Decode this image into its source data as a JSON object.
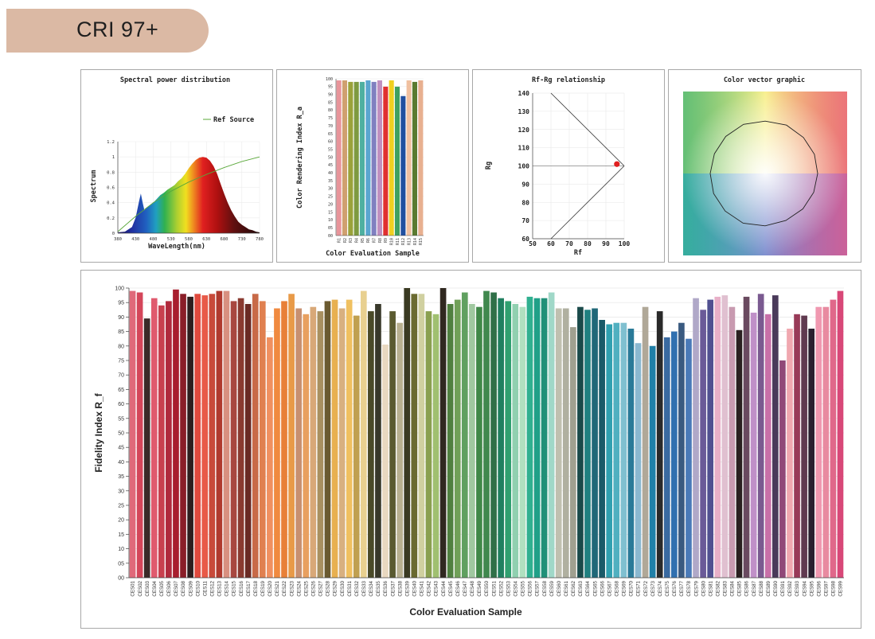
{
  "badge": {
    "label": "CRI 97+"
  },
  "colors": {
    "badge_bg": "#dbb9a4",
    "ref_line": "#5aa83a",
    "marker": "#e02020"
  },
  "chart_data": [
    {
      "type": "area",
      "title": "Spectral power distribution",
      "xlabel": "WaveLength(nm)",
      "ylabel": "Spectrum",
      "legend": [
        "Ref Source"
      ],
      "legend_position": "top-right",
      "x_ticks": [
        "380",
        "430",
        "480",
        "530",
        "580",
        "630",
        "680",
        "730",
        "780"
      ],
      "y_ticks": [
        "0",
        "0.2",
        "0.4",
        "0.6",
        "0.8",
        "1",
        "1.2"
      ],
      "xlim": [
        380,
        780
      ],
      "ylim": [
        0,
        1.2
      ],
      "series": [
        {
          "name": "",
          "x": [
            380,
            400,
            420,
            430,
            440,
            445,
            450,
            455,
            460,
            470,
            480,
            490,
            500,
            510,
            520,
            530,
            540,
            550,
            560,
            570,
            580,
            590,
            600,
            610,
            620,
            630,
            640,
            650,
            660,
            670,
            680,
            690,
            700,
            710,
            720,
            730,
            740,
            750,
            760,
            770,
            780
          ],
          "values": [
            0.01,
            0.02,
            0.08,
            0.2,
            0.42,
            0.52,
            0.4,
            0.3,
            0.33,
            0.36,
            0.4,
            0.45,
            0.5,
            0.53,
            0.57,
            0.6,
            0.63,
            0.68,
            0.72,
            0.78,
            0.85,
            0.91,
            0.96,
            0.99,
            1.0,
            0.99,
            0.95,
            0.88,
            0.78,
            0.65,
            0.52,
            0.4,
            0.3,
            0.22,
            0.15,
            0.11,
            0.08,
            0.05,
            0.04,
            0.02,
            0.01
          ]
        },
        {
          "name": "Ref Source",
          "x": [
            380,
            430,
            480,
            530,
            580,
            630,
            680,
            730,
            780
          ],
          "values": [
            0.02,
            0.22,
            0.4,
            0.55,
            0.67,
            0.77,
            0.86,
            0.94,
            1.0
          ]
        }
      ]
    },
    {
      "type": "bar",
      "xlabel": "Color Evaluation Sample",
      "ylabel": "Color Rendering Index R_a",
      "ylim": [
        0,
        100
      ],
      "categories": [
        "R1",
        "R2",
        "R3",
        "R4",
        "R5",
        "R6",
        "R7",
        "R8",
        "R9",
        "R10",
        "R11",
        "R12",
        "R13",
        "R14",
        "R15"
      ],
      "values": [
        99,
        99,
        98,
        98,
        98,
        99,
        98,
        99,
        95,
        99,
        95,
        89,
        99,
        98,
        99
      ],
      "bar_colors": [
        "#e8949a",
        "#d0a070",
        "#9aa23a",
        "#7e9a40",
        "#4eb0a0",
        "#5aa6d0",
        "#8080c0",
        "#c090c0",
        "#e03030",
        "#f0d020",
        "#40a060",
        "#2050a0",
        "#f0c0a0",
        "#5a7a30",
        "#e8b090"
      ]
    },
    {
      "type": "scatter",
      "title": "Rf-Rg relationship",
      "xlabel": "Rf",
      "ylabel": "Rg",
      "xlim": [
        50,
        100
      ],
      "ylim": [
        60,
        140
      ],
      "x_ticks": [
        "50",
        "60",
        "70",
        "80",
        "90",
        "100"
      ],
      "y_ticks": [
        "60",
        "70",
        "80",
        "90",
        "100",
        "110",
        "120",
        "130",
        "140"
      ],
      "points": [
        {
          "x": 96,
          "y": 101
        }
      ]
    },
    {
      "type": "other",
      "title": "Color vector graphic"
    },
    {
      "type": "bar",
      "xlabel": "Color Evaluation Sample",
      "ylabel": "Fidelity Index R_f",
      "ylim": [
        0,
        100
      ],
      "y_ticks": [
        "00",
        "05",
        "10",
        "15",
        "20",
        "25",
        "30",
        "35",
        "40",
        "45",
        "50",
        "55",
        "60",
        "65",
        "70",
        "75",
        "80",
        "85",
        "90",
        "95",
        "100"
      ],
      "categories": [
        "CES01",
        "CES02",
        "CES03",
        "CES04",
        "CES05",
        "CES06",
        "CES07",
        "CES08",
        "CES09",
        "CES10",
        "CES11",
        "CES12",
        "CES13",
        "CES14",
        "CES15",
        "CES16",
        "CES17",
        "CES18",
        "CES19",
        "CES20",
        "CES21",
        "CES22",
        "CES23",
        "CES24",
        "CES25",
        "CES26",
        "CES27",
        "CES28",
        "CES29",
        "CES30",
        "CES31",
        "CES32",
        "CES33",
        "CES34",
        "CES35",
        "CES36",
        "CES37",
        "CES38",
        "CES39",
        "CES40",
        "CES41",
        "CES42",
        "CES43",
        "CES44",
        "CES45",
        "CES46",
        "CES47",
        "CES48",
        "CES49",
        "CES50",
        "CES51",
        "CES52",
        "CES53",
        "CES54",
        "CES55",
        "CES56",
        "CES57",
        "CES58",
        "CES59",
        "CES60",
        "CES61",
        "CES62",
        "CES63",
        "CES64",
        "CES65",
        "CES66",
        "CES67",
        "CES68",
        "CES69",
        "CES70",
        "CES71",
        "CES72",
        "CES73",
        "CES74",
        "CES75",
        "CES76",
        "CES77",
        "CES78",
        "CES79",
        "CES80",
        "CES81",
        "CES82",
        "CES83",
        "CES84",
        "CES85",
        "CES86",
        "CES87",
        "CES88",
        "CES89",
        "CES90",
        "CES91",
        "CES92",
        "CES93",
        "CES94",
        "CES95",
        "CES96",
        "CES97",
        "CES98",
        "CES99"
      ],
      "values": [
        99,
        98.5,
        89.5,
        96.5,
        94,
        95.5,
        99.5,
        98,
        97,
        98,
        97.5,
        98,
        99,
        99,
        95.5,
        96.5,
        94.5,
        98,
        95.5,
        83,
        93,
        95.5,
        98,
        93,
        91,
        93.5,
        92,
        95.5,
        96,
        93,
        96,
        90.5,
        99,
        92,
        94.5,
        80.5,
        92,
        88,
        100,
        98,
        98,
        92,
        91,
        100,
        94.5,
        96,
        98.5,
        94.5,
        93.5,
        99,
        98.5,
        96.5,
        95.5,
        94.5,
        93.5,
        97,
        96.5,
        96.5,
        98.5,
        93,
        93,
        86.5,
        93.5,
        92.5,
        93,
        89,
        87.5,
        88,
        88,
        86,
        81,
        93.5,
        80,
        92,
        83,
        85,
        88,
        82.5,
        96.5,
        92.5,
        96,
        97,
        97.5,
        93.5,
        85.5,
        97,
        91.5,
        98,
        91,
        97.5,
        75,
        86,
        91,
        90.5,
        86,
        93.5,
        93.5,
        96,
        99
      ],
      "bar_colors": [
        "#e0697a",
        "#d4465a",
        "#3a2a28",
        "#e05a6e",
        "#c8404e",
        "#b02a3c",
        "#a81e2e",
        "#8a1e28",
        "#2e1e1e",
        "#e04a3e",
        "#e85a48",
        "#c84a3a",
        "#b03a2e",
        "#d89080",
        "#a84840",
        "#8a3a30",
        "#6a2a24",
        "#c86a48",
        "#e08050",
        "#f09060",
        "#f08a40",
        "#e88038",
        "#e89a48",
        "#c89070",
        "#e8a060",
        "#d8a878",
        "#a89060",
        "#6a5a30",
        "#e8b050",
        "#d8b080",
        "#f0c060",
        "#c0a050",
        "#e8d090",
        "#4a4a28",
        "#38382a",
        "#e8d8c0",
        "#5a5a30",
        "#b8b090",
        "#3a3a22",
        "#6a6a30",
        "#d0d0a0",
        "#8aa050",
        "#a0c070",
        "#302820",
        "#508040",
        "#70a058",
        "#60a060",
        "#a0c8a0",
        "#408848",
        "#40884e",
        "#307048",
        "#208060",
        "#30a070",
        "#90d0b0",
        "#b0e0c0",
        "#30b090",
        "#20a088",
        "#209078",
        "#a0d8c8",
        "#c0c0b0",
        "#b0b0a0",
        "#a0a090",
        "#1a4a4a",
        "#208080",
        "#206878",
        "#1a5a68",
        "#30a0b0",
        "#50b0c0",
        "#80c0d0",
        "#2a7a98",
        "#8ab8d0",
        "#b0a898",
        "#2080a8",
        "#2a2a2a",
        "#3a6aa0",
        "#3070b0",
        "#3a5a80",
        "#4a7ab8",
        "#b0a8c8",
        "#6a5a98",
        "#505090",
        "#e8b0c8",
        "#e0c0d0",
        "#c89ab0",
        "#2a2020",
        "#6a4a60",
        "#c090c8",
        "#7a5a90",
        "#c870a8",
        "#4a3a5a",
        "#904878",
        "#f0a8b0",
        "#983a58",
        "#603a50",
        "#2a2030",
        "#f098b0",
        "#e88aa0",
        "#e0688a",
        "#d84878"
      ]
    }
  ]
}
